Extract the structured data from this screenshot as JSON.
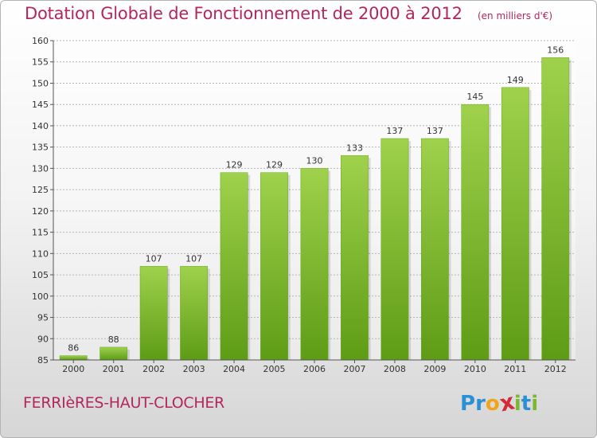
{
  "chart_data": {
    "type": "bar",
    "title": "Dotation Globale de Fonctionnement de 2000 à 2012",
    "subtitle": "(en milliers d'€)",
    "categories": [
      "2000",
      "2001",
      "2002",
      "2003",
      "2004",
      "2005",
      "2006",
      "2007",
      "2008",
      "2009",
      "2010",
      "2011",
      "2012"
    ],
    "values": [
      86,
      88,
      107,
      107,
      129,
      129,
      130,
      133,
      137,
      137,
      145,
      149,
      156
    ],
    "ylim": [
      85,
      160
    ],
    "yticks": [
      85,
      90,
      95,
      100,
      105,
      110,
      115,
      120,
      125,
      130,
      135,
      140,
      145,
      150,
      155,
      160
    ],
    "grid": true,
    "bar_color": "#7dbb2c",
    "title_color": "#b3265e"
  },
  "footer": {
    "commune": "FERRIèRES-HAUT-CLOCHER",
    "brand_letters": [
      "P",
      "r",
      "o",
      "x",
      "i",
      "t",
      "i"
    ],
    "brand_colors": [
      "#2b8fd6",
      "#2b8fd6",
      "#f0a419",
      "#d6283b",
      "#7cb82f",
      "#2b8fd6",
      "#7cb82f"
    ]
  }
}
